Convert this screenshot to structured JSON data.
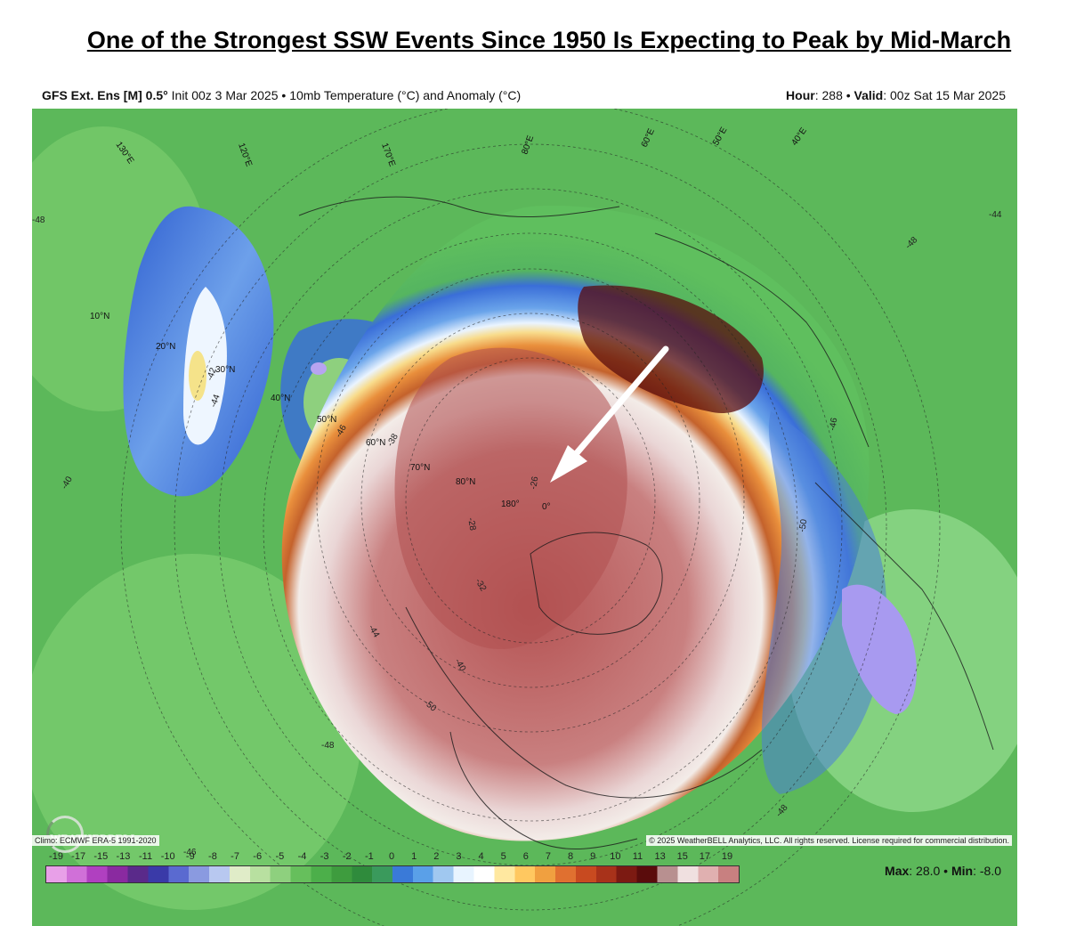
{
  "headline": "One of the Strongest SSW Events Since 1950 Is Expecting to Peak by Mid-March",
  "header": {
    "model": "GFS Ext. Ens [M] 0.5°",
    "init": "Init 00z 3 Mar 2025",
    "field": "10mb Temperature (°C) and Anomaly (°C)",
    "hour_label": "Hour",
    "hour_value": "288",
    "valid_label": "Valid",
    "valid_value": "00z Sat 15 Mar 2025"
  },
  "map_labels": {
    "lat_10n": "10°N",
    "lat_20n": "20°N",
    "lat_30n": "30°N",
    "lat_40n": "40°N",
    "lat_50n": "50°N",
    "lat_60n": "60°N",
    "lat_70n": "70°N",
    "lat_80n": "80°N",
    "lon_180": "180°",
    "lon_0": "0°",
    "lon_80e": "80°E",
    "lon_60e": "60°E",
    "lon_50e": "50°E",
    "lon_40e": "40°E",
    "lon_120e": "120°E",
    "lon_130e": "130°E",
    "lon_170e": "170°E",
    "c_n48a": "-48",
    "c_n44a": "-44",
    "c_n42": "-42",
    "c_n46a": "-46",
    "c_n46b": "-46",
    "c_n48b": "-48",
    "c_n50a": "-50",
    "c_n44b": "-44",
    "c_n40": "-40",
    "c_n50b": "-50",
    "c_n48c": "-48",
    "c_n46c": "-46",
    "c_n44c": "-44",
    "c_n38": "-38",
    "c_n28": "-28",
    "c_n26": "-26",
    "c_n32": "-32",
    "c_n48d": "-48"
  },
  "footer": {
    "climo": "Climo: ECMWF ERA-5 1991-2020",
    "copyright": "© 2025 WeatherBELL Analytics, LLC. All rights reserved. License required for commercial distribution.",
    "logo_text": "WEATHERBELL",
    "max_label": "Max",
    "max_value": "28.0",
    "min_label": "Min",
    "min_value": "-8.0"
  },
  "legend": {
    "ticks": [
      "-19",
      "-17",
      "-15",
      "-13",
      "-11",
      "-10",
      "-9",
      "-8",
      "-7",
      "-6",
      "-5",
      "-4",
      "-3",
      "-2",
      "-1",
      "0",
      "1",
      "2",
      "3",
      "4",
      "5",
      "6",
      "7",
      "8",
      "9",
      "10",
      "11",
      "13",
      "15",
      "17",
      "19"
    ],
    "colors": [
      "#e8a0e8",
      "#d070d8",
      "#b040c0",
      "#8a2aa0",
      "#5a2a8a",
      "#3a3aa8",
      "#5a6ad0",
      "#8a9ae0",
      "#b8c8f0",
      "#e0ecc8",
      "#b8e0a0",
      "#8ed07e",
      "#66bf5c",
      "#4caf4a",
      "#3e9c3e",
      "#2f8b3c",
      "#3a9a5c",
      "#3a7ad8",
      "#5aa0e8",
      "#a0c8f0",
      "#e8f4ff",
      "#ffffff",
      "#ffe8a0",
      "#ffc860",
      "#f0a040",
      "#e07030",
      "#c84a20",
      "#a8321a",
      "#7c1a12",
      "#5a0c0c",
      "#b89090",
      "#f0e0e0",
      "#e0b0b0",
      "#c88080"
    ]
  }
}
